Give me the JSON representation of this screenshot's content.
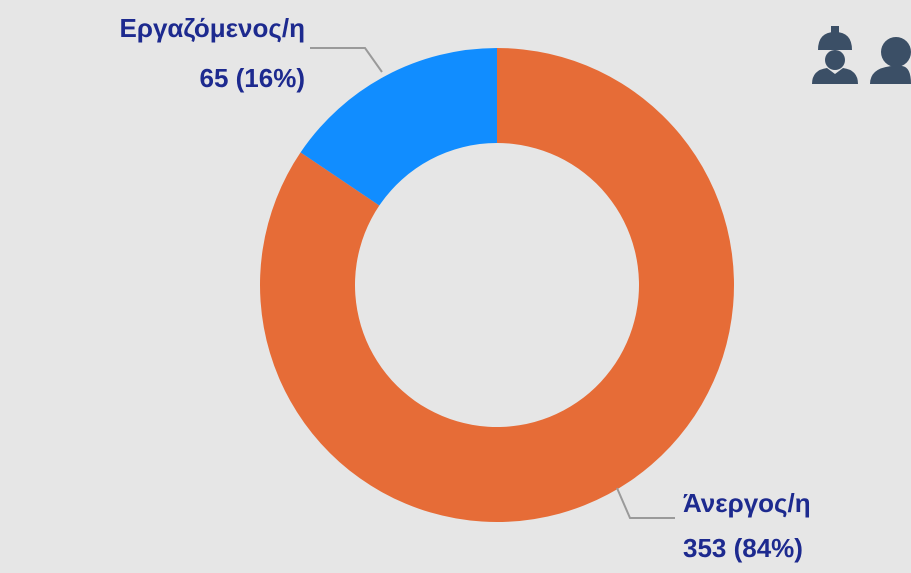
{
  "chart_data": {
    "type": "pie",
    "donut": true,
    "categories": [
      "Άνεργος/η",
      "Εργαζόμενος/η"
    ],
    "values": [
      353,
      65
    ],
    "value_labels": [
      "353 (84%)",
      "65 (16%)"
    ],
    "colors": [
      "#e66c37",
      "#118dff"
    ]
  }
}
